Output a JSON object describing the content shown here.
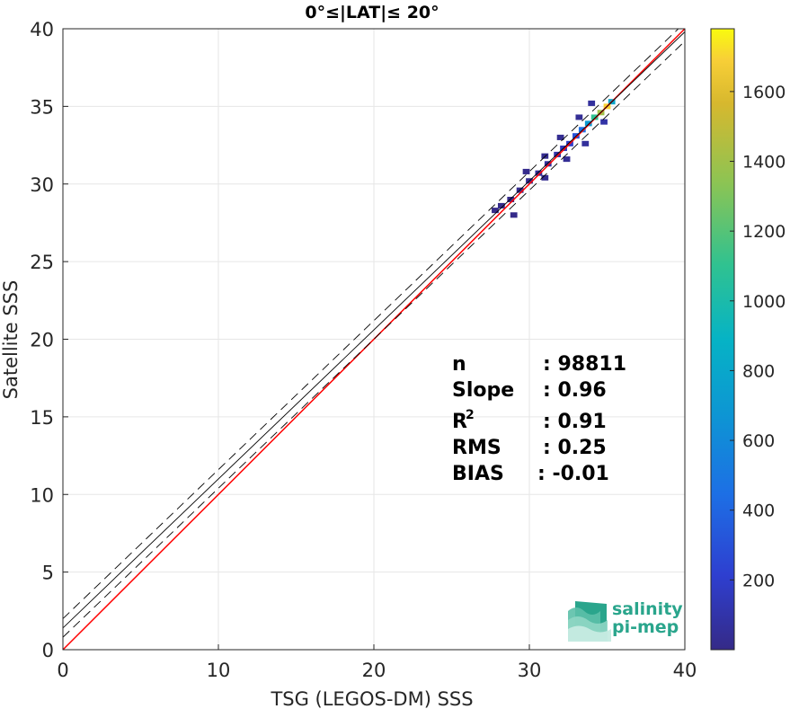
{
  "chart_data": {
    "type": "heatmap",
    "title": "0°≤|LAT|≤ 20°",
    "xlabel": "TSG (LEGOS-DM) SSS",
    "ylabel": "Satellite SSS",
    "xlim": [
      0,
      40
    ],
    "ylim": [
      0,
      40
    ],
    "x_ticks": [
      0,
      10,
      20,
      30,
      40
    ],
    "y_ticks": [
      0,
      5,
      10,
      15,
      20,
      25,
      30,
      35,
      40
    ],
    "grid": true,
    "colorbar": {
      "range": [
        0,
        1780
      ],
      "ticks": [
        200,
        400,
        600,
        800,
        1000,
        1200,
        1400,
        1600
      ],
      "colormap": "parula"
    },
    "reference_lines": [
      {
        "name": "one-to-one",
        "slope": 1,
        "intercept": 0,
        "color": "#ff0000",
        "style": "solid"
      },
      {
        "name": "regression",
        "slope": 0.96,
        "intercept": 1.4,
        "color": "#000000",
        "style": "solid"
      },
      {
        "name": "upper-bound",
        "slope": 0.96,
        "intercept": 2.0,
        "color": "#000000",
        "style": "dashed"
      },
      {
        "name": "lower-bound",
        "slope": 0.96,
        "intercept": 0.8,
        "color": "#000000",
        "style": "dashed"
      }
    ],
    "density_cells": [
      {
        "x": 35.0,
        "y": 35.0,
        "count": 1700
      },
      {
        "x": 34.6,
        "y": 34.6,
        "count": 1400
      },
      {
        "x": 34.2,
        "y": 34.3,
        "count": 1100
      },
      {
        "x": 33.8,
        "y": 33.9,
        "count": 700
      },
      {
        "x": 35.3,
        "y": 35.3,
        "count": 800
      },
      {
        "x": 33.4,
        "y": 33.5,
        "count": 450
      },
      {
        "x": 33.0,
        "y": 33.1,
        "count": 300
      },
      {
        "x": 32.6,
        "y": 32.6,
        "count": 200
      },
      {
        "x": 32.2,
        "y": 32.3,
        "count": 150
      },
      {
        "x": 31.8,
        "y": 31.9,
        "count": 100
      },
      {
        "x": 31.2,
        "y": 31.3,
        "count": 70
      },
      {
        "x": 30.6,
        "y": 30.7,
        "count": 50
      },
      {
        "x": 30.0,
        "y": 30.2,
        "count": 30
      },
      {
        "x": 29.4,
        "y": 29.6,
        "count": 20
      },
      {
        "x": 28.8,
        "y": 29.0,
        "count": 10
      },
      {
        "x": 34.0,
        "y": 35.2,
        "count": 60
      },
      {
        "x": 33.2,
        "y": 34.3,
        "count": 40
      },
      {
        "x": 32.0,
        "y": 33.0,
        "count": 30
      },
      {
        "x": 31.0,
        "y": 31.8,
        "count": 25
      },
      {
        "x": 29.8,
        "y": 30.8,
        "count": 15
      },
      {
        "x": 34.8,
        "y": 34.0,
        "count": 90
      },
      {
        "x": 33.6,
        "y": 32.6,
        "count": 60
      },
      {
        "x": 32.4,
        "y": 31.6,
        "count": 40
      },
      {
        "x": 31.0,
        "y": 30.4,
        "count": 25
      },
      {
        "x": 29.0,
        "y": 28.0,
        "count": 10
      },
      {
        "x": 28.2,
        "y": 28.6,
        "count": 8
      },
      {
        "x": 27.8,
        "y": 28.3,
        "count": 5
      }
    ],
    "stats": [
      {
        "label": "n",
        "sup": "",
        "value": ": 98811"
      },
      {
        "label": "Slope",
        "sup": "",
        "value": ": 0.96"
      },
      {
        "label": "R",
        "sup": "2",
        "value": ": 0.91"
      },
      {
        "label": "RMS",
        "sup": "",
        "value": ": 0.25"
      },
      {
        "label": "BIAS",
        "sup": "",
        "value": ": -0.01"
      }
    ]
  },
  "logo": {
    "line1": "salinity",
    "line2": "pi-mep"
  }
}
